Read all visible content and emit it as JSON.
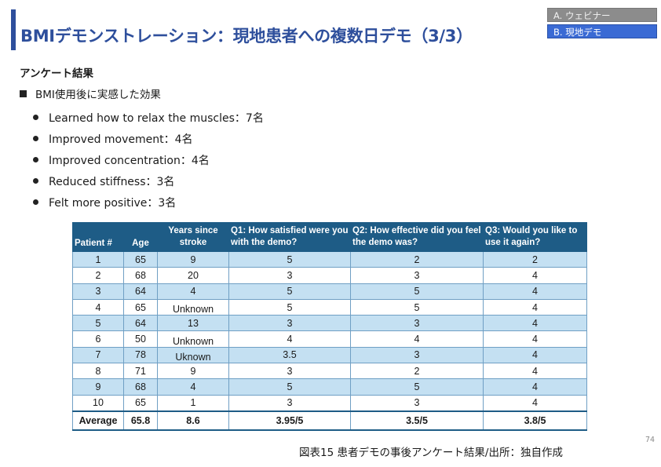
{
  "slide": {
    "title": "BMIデモンストレーション：現地患者への複数日デモ（3/3）",
    "page_number": "74",
    "caption": "図表15 患者デモの事後アンケート結果/出所：独自作成"
  },
  "nav": {
    "items": [
      {
        "label": "A. ウェビナー",
        "active": false
      },
      {
        "label": "B. 現地デモ",
        "active": true
      }
    ]
  },
  "content": {
    "section_heading": "アンケート結果",
    "sub_heading": "BMI使用後に実感した効果",
    "bullets": [
      "Learned how to relax the muscles：7名",
      "Improved movement：4名",
      "Improved concentration：4名",
      "Reduced stiffness：3名",
      "Felt more positive：3名"
    ]
  },
  "table": {
    "headers": [
      "Patient #",
      "Age",
      "Years since stroke",
      "Q1: How satisfied were you with the demo?",
      "Q2: How effective did you feel the demo was?",
      "Q3: Would you like to use it again?"
    ],
    "rows": [
      [
        "1",
        "65",
        "9",
        "5",
        "2",
        "2"
      ],
      [
        "2",
        "68",
        "20",
        "3",
        "3",
        "4"
      ],
      [
        "3",
        "64",
        "4",
        "5",
        "5",
        "4"
      ],
      [
        "4",
        "65",
        "Unknown",
        "5",
        "5",
        "4"
      ],
      [
        "5",
        "64",
        "13",
        "3",
        "3",
        "4"
      ],
      [
        "6",
        "50",
        "Unknown",
        "4",
        "4",
        "4"
      ],
      [
        "7",
        "78",
        "Uknown",
        "3.5",
        "3",
        "4"
      ],
      [
        "8",
        "71",
        "9",
        "3",
        "2",
        "4"
      ],
      [
        "9",
        "68",
        "4",
        "5",
        "5",
        "4"
      ],
      [
        "10",
        "65",
        "1",
        "3",
        "3",
        "4"
      ]
    ],
    "average": [
      "Average",
      "65.8",
      "8.6",
      "3.95/5",
      "3.5/5",
      "3.8/5"
    ]
  }
}
